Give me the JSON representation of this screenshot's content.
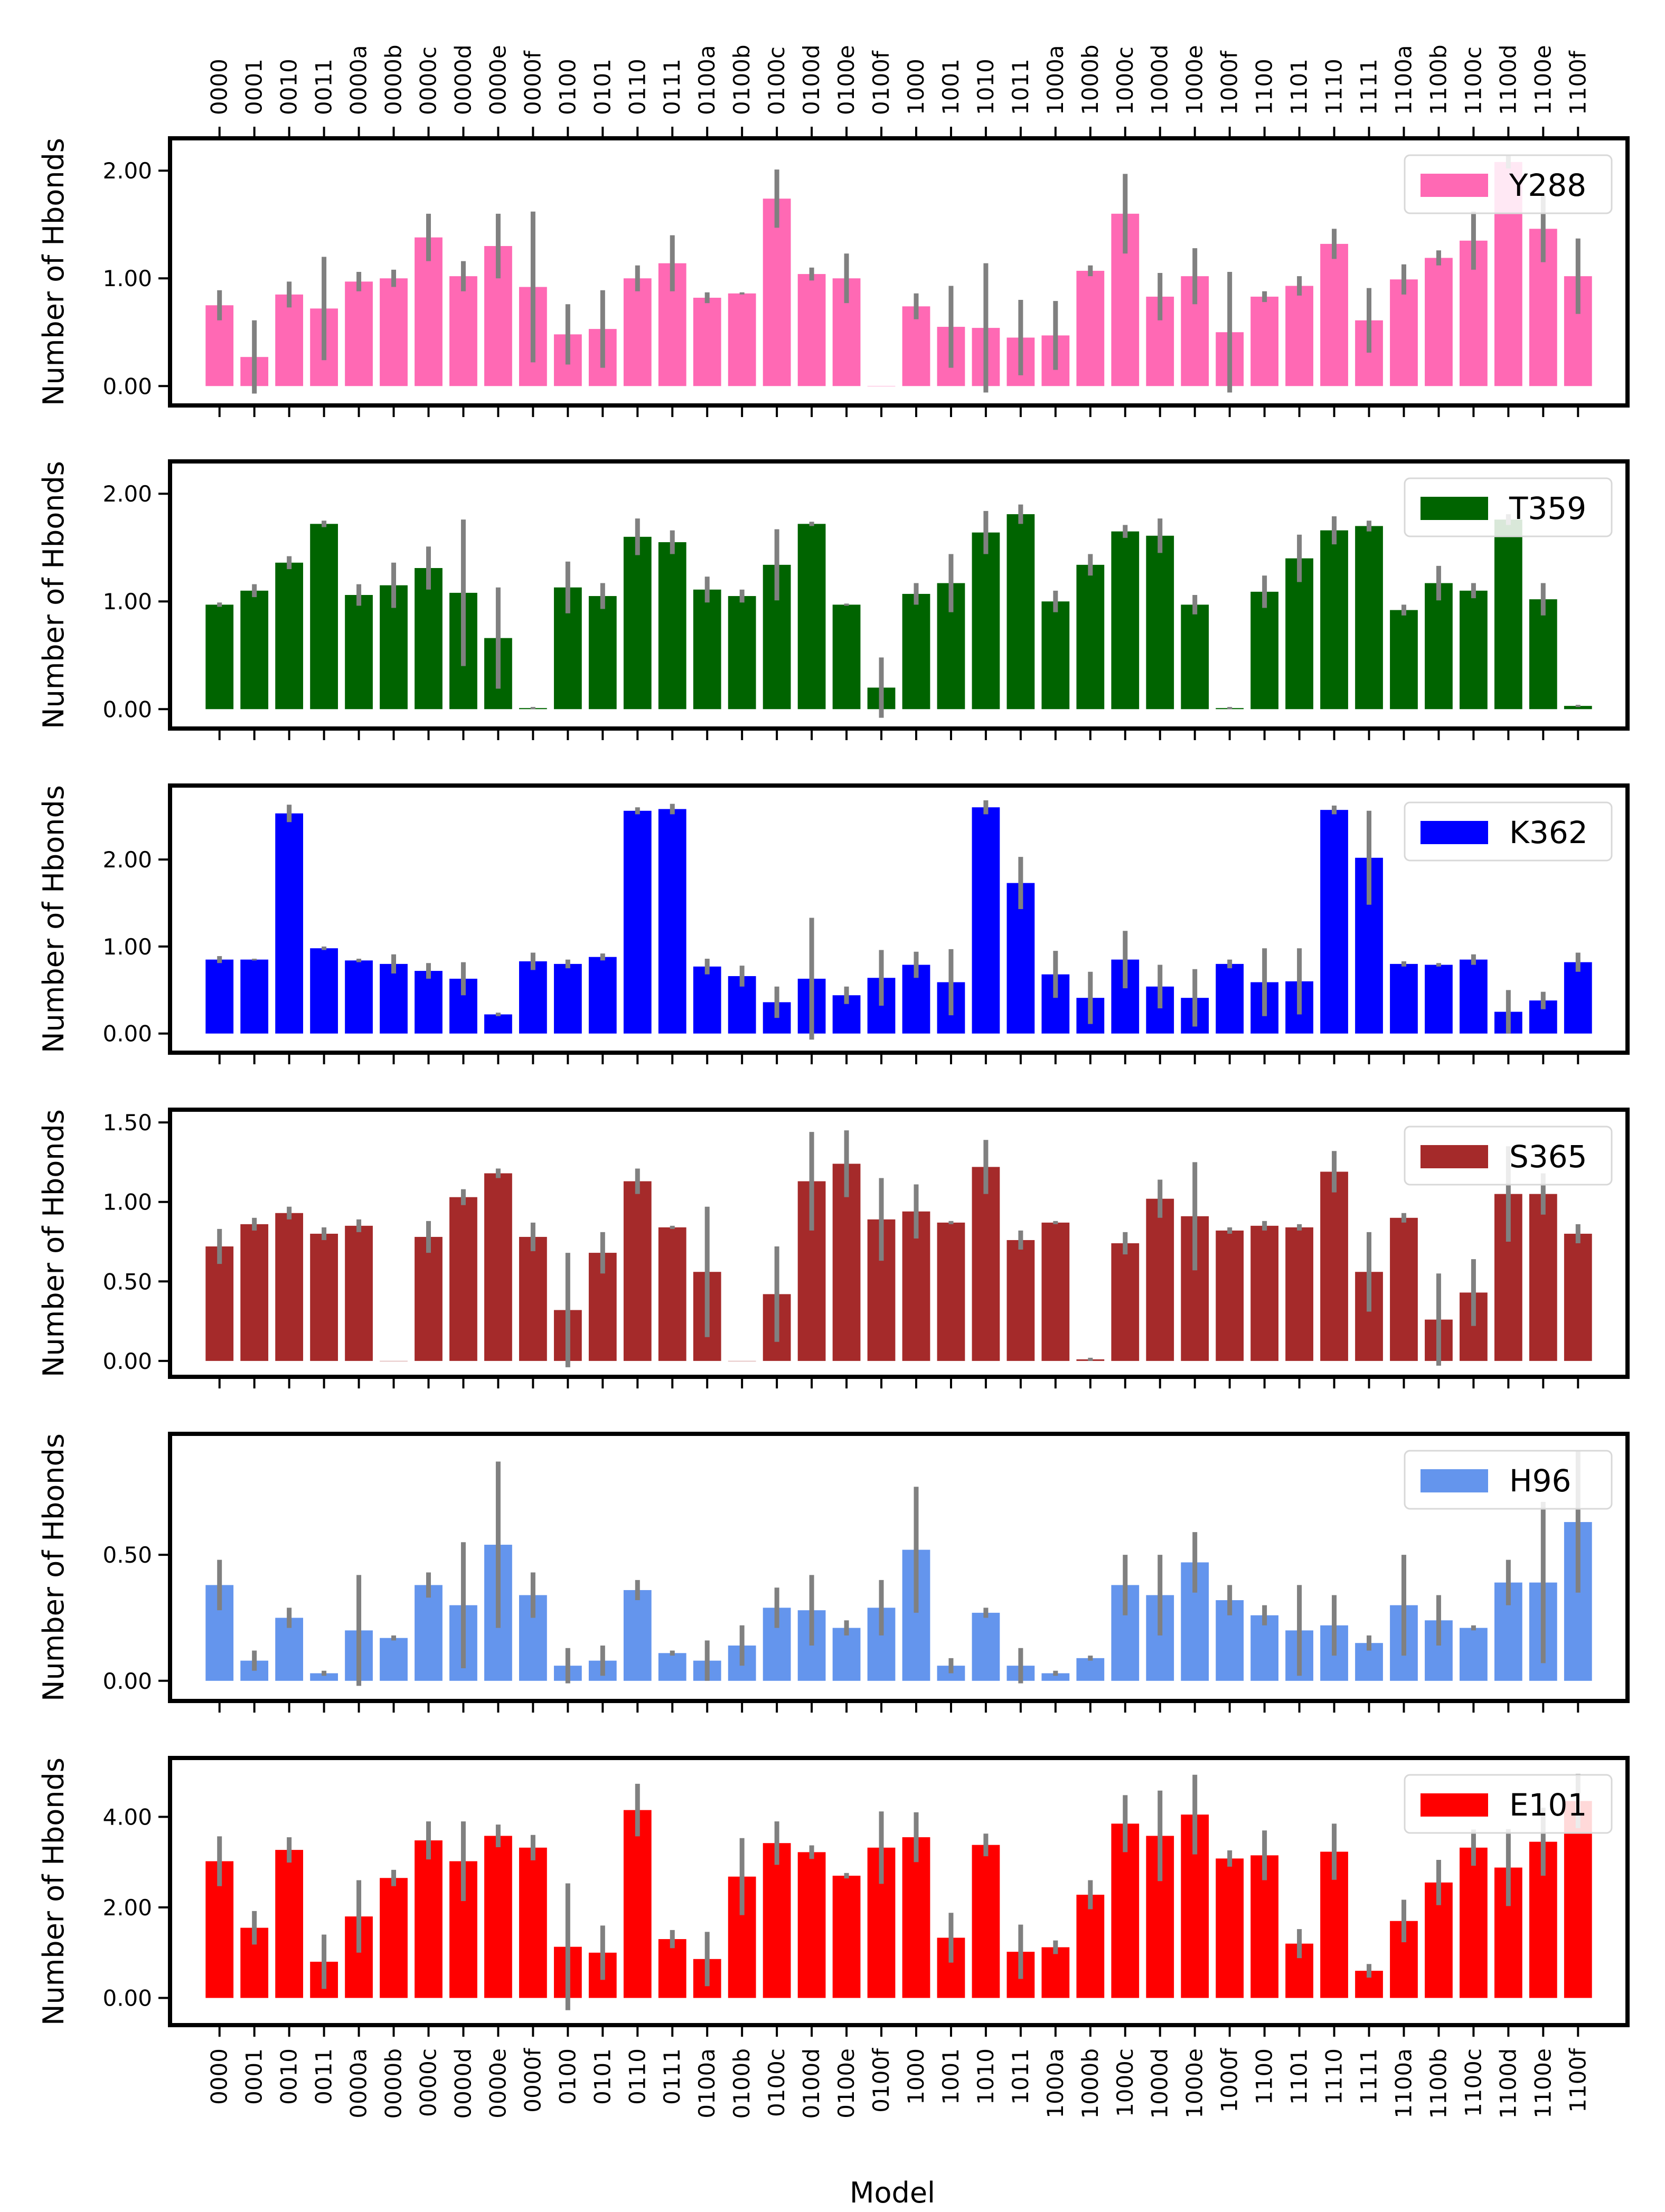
{
  "chart_data": {
    "type": "bar",
    "xlabel": "Model",
    "ylabel": "Number of Hbonds",
    "categories": [
      "0000",
      "0001",
      "0010",
      "0011",
      "0000a",
      "0000b",
      "0000c",
      "0000d",
      "0000e",
      "0000f",
      "0100",
      "0101",
      "0110",
      "0111",
      "0100a",
      "0100b",
      "0100c",
      "0100d",
      "0100e",
      "0100f",
      "1000",
      "1001",
      "1010",
      "1011",
      "1000a",
      "1000b",
      "1000c",
      "1000d",
      "1000e",
      "1000f",
      "1100",
      "1101",
      "1110",
      "1111",
      "1100a",
      "1100b",
      "1100c",
      "1100d",
      "1100e",
      "1100f"
    ],
    "panels": [
      {
        "name": "Y288",
        "color": "#ff69b4",
        "ylim": [
          -0.18,
          2.3
        ],
        "ticks": [
          0,
          1,
          2
        ],
        "tick_labels": [
          "0.00",
          "1.00",
          "2.00"
        ],
        "values": [
          0.75,
          0.27,
          0.85,
          0.72,
          0.97,
          1.0,
          1.38,
          1.02,
          1.3,
          0.92,
          0.48,
          0.53,
          1.0,
          1.14,
          0.82,
          0.86,
          1.74,
          1.04,
          1.0,
          0.0,
          0.74,
          0.55,
          0.54,
          0.45,
          0.47,
          1.07,
          1.6,
          0.83,
          1.02,
          0.5,
          0.83,
          0.93,
          1.32,
          0.61,
          0.99,
          1.19,
          1.35,
          2.08,
          1.46,
          1.02
        ],
        "errors": [
          0.14,
          0.34,
          0.12,
          0.48,
          0.09,
          0.08,
          0.22,
          0.14,
          0.3,
          0.7,
          0.28,
          0.36,
          0.12,
          0.26,
          0.05,
          0.01,
          0.27,
          0.06,
          0.23,
          0.0,
          0.12,
          0.38,
          0.6,
          0.35,
          0.32,
          0.05,
          0.37,
          0.22,
          0.26,
          0.56,
          0.05,
          0.09,
          0.14,
          0.3,
          0.14,
          0.07,
          0.27,
          0.06,
          0.31,
          0.35
        ]
      },
      {
        "name": "T359",
        "color": "#006400",
        "ylim": [
          -0.18,
          2.3
        ],
        "ticks": [
          0,
          1,
          2
        ],
        "tick_labels": [
          "0.00",
          "1.00",
          "2.00"
        ],
        "values": [
          0.97,
          1.1,
          1.36,
          1.72,
          1.06,
          1.15,
          1.31,
          1.08,
          0.66,
          0.01,
          1.13,
          1.05,
          1.6,
          1.55,
          1.11,
          1.05,
          1.34,
          1.72,
          0.97,
          0.2,
          1.07,
          1.17,
          1.64,
          1.81,
          1.0,
          1.34,
          1.65,
          1.61,
          0.97,
          0.01,
          1.09,
          1.4,
          1.66,
          1.7,
          0.92,
          1.17,
          1.1,
          1.76,
          1.02,
          0.03
        ],
        "errors": [
          0.02,
          0.06,
          0.06,
          0.03,
          0.1,
          0.21,
          0.2,
          0.68,
          0.47,
          0.01,
          0.24,
          0.12,
          0.17,
          0.11,
          0.12,
          0.06,
          0.33,
          0.02,
          0.01,
          0.28,
          0.1,
          0.27,
          0.2,
          0.09,
          0.1,
          0.1,
          0.06,
          0.16,
          0.09,
          0.01,
          0.15,
          0.22,
          0.13,
          0.05,
          0.05,
          0.16,
          0.07,
          0.05,
          0.15,
          0.01
        ]
      },
      {
        "name": "K362",
        "color": "#0000ff",
        "ylim": [
          -0.22,
          2.85
        ],
        "ticks": [
          0,
          1,
          2
        ],
        "tick_labels": [
          "0.00",
          "1.00",
          "2.00"
        ],
        "values": [
          0.85,
          0.85,
          2.53,
          0.98,
          0.84,
          0.8,
          0.72,
          0.63,
          0.22,
          0.83,
          0.8,
          0.88,
          2.56,
          2.58,
          0.77,
          0.66,
          0.36,
          0.63,
          0.44,
          0.64,
          0.79,
          0.59,
          2.6,
          1.73,
          0.68,
          0.41,
          0.85,
          0.54,
          0.41,
          0.8,
          0.59,
          0.6,
          2.57,
          2.02,
          0.8,
          0.79,
          0.85,
          0.25,
          0.38,
          0.82
        ],
        "errors": [
          0.04,
          0.01,
          0.1,
          0.02,
          0.02,
          0.11,
          0.09,
          0.19,
          0.02,
          0.1,
          0.05,
          0.04,
          0.04,
          0.06,
          0.09,
          0.12,
          0.18,
          0.7,
          0.1,
          0.32,
          0.15,
          0.38,
          0.08,
          0.3,
          0.27,
          0.3,
          0.33,
          0.25,
          0.33,
          0.05,
          0.39,
          0.38,
          0.05,
          0.54,
          0.03,
          0.02,
          0.06,
          0.25,
          0.1,
          0.11
        ]
      },
      {
        "name": "S365",
        "color": "#a52a2a",
        "ylim": [
          -0.1,
          1.58
        ],
        "ticks": [
          0,
          0.5,
          1,
          1.5
        ],
        "tick_labels": [
          "0.00",
          "0.50",
          "1.00",
          "1.50"
        ],
        "values": [
          0.72,
          0.86,
          0.93,
          0.8,
          0.85,
          0.0,
          0.78,
          1.03,
          1.18,
          0.78,
          0.32,
          0.68,
          1.13,
          0.84,
          0.56,
          0.0,
          0.42,
          1.13,
          1.24,
          0.89,
          0.94,
          0.87,
          1.22,
          0.76,
          0.87,
          0.01,
          0.74,
          1.02,
          0.91,
          0.82,
          0.85,
          0.84,
          1.19,
          0.56,
          0.9,
          0.26,
          0.43,
          1.05,
          1.05,
          0.8
        ],
        "errors": [
          0.11,
          0.04,
          0.04,
          0.04,
          0.04,
          0.0,
          0.1,
          0.05,
          0.03,
          0.09,
          0.36,
          0.13,
          0.08,
          0.01,
          0.41,
          0.0,
          0.3,
          0.31,
          0.21,
          0.26,
          0.17,
          0.01,
          0.17,
          0.06,
          0.01,
          0.01,
          0.07,
          0.12,
          0.34,
          0.02,
          0.03,
          0.02,
          0.13,
          0.25,
          0.03,
          0.29,
          0.21,
          0.3,
          0.13,
          0.06
        ]
      },
      {
        "name": "H96",
        "color": "#6495ed",
        "ylim": [
          -0.08,
          0.98
        ],
        "ticks": [
          0,
          0.5
        ],
        "tick_labels": [
          "0.00",
          "0.50"
        ],
        "values": [
          0.38,
          0.08,
          0.25,
          0.03,
          0.2,
          0.17,
          0.38,
          0.3,
          0.54,
          0.34,
          0.06,
          0.08,
          0.36,
          0.11,
          0.08,
          0.14,
          0.29,
          0.28,
          0.21,
          0.29,
          0.52,
          0.06,
          0.27,
          0.06,
          0.03,
          0.09,
          0.38,
          0.34,
          0.47,
          0.32,
          0.26,
          0.2,
          0.22,
          0.15,
          0.3,
          0.24,
          0.21,
          0.39,
          0.39,
          0.63
        ],
        "errors": [
          0.1,
          0.04,
          0.04,
          0.01,
          0.22,
          0.01,
          0.05,
          0.25,
          0.33,
          0.09,
          0.07,
          0.06,
          0.04,
          0.01,
          0.08,
          0.08,
          0.08,
          0.14,
          0.03,
          0.11,
          0.25,
          0.03,
          0.02,
          0.07,
          0.01,
          0.01,
          0.12,
          0.16,
          0.12,
          0.06,
          0.04,
          0.18,
          0.12,
          0.03,
          0.2,
          0.1,
          0.01,
          0.09,
          0.32,
          0.28
        ]
      },
      {
        "name": "E101",
        "color": "#ff0000",
        "ylim": [
          -0.6,
          5.3
        ],
        "ticks": [
          0,
          2,
          4
        ],
        "tick_labels": [
          "0.00",
          "2.00",
          "4.00"
        ],
        "values": [
          3.02,
          1.55,
          3.27,
          0.8,
          1.8,
          2.65,
          3.48,
          3.02,
          3.58,
          3.32,
          1.13,
          1.0,
          4.15,
          1.3,
          0.86,
          2.68,
          3.42,
          3.22,
          2.7,
          3.32,
          3.55,
          1.33,
          3.38,
          1.02,
          1.12,
          2.28,
          3.85,
          3.58,
          4.05,
          3.08,
          3.15,
          1.2,
          3.23,
          0.6,
          1.7,
          2.55,
          3.32,
          2.88,
          3.45,
          4.35
        ],
        "errors": [
          0.55,
          0.37,
          0.28,
          0.6,
          0.8,
          0.18,
          0.42,
          0.88,
          0.25,
          0.28,
          1.4,
          0.6,
          0.58,
          0.2,
          0.6,
          0.85,
          0.48,
          0.15,
          0.06,
          0.8,
          0.55,
          0.55,
          0.25,
          0.6,
          0.15,
          0.32,
          0.63,
          1.0,
          0.88,
          0.18,
          0.55,
          0.32,
          0.62,
          0.15,
          0.47,
          0.5,
          0.4,
          0.85,
          0.75,
          0.6
        ]
      }
    ]
  }
}
